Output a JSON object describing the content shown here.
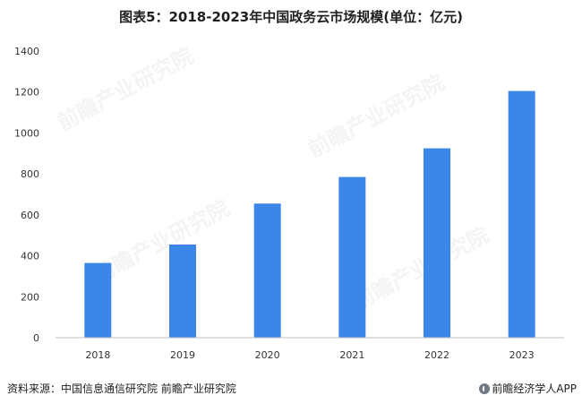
{
  "title": "图表5：2018-2023年中国政务云市场规模(单位：亿元)",
  "footer": {
    "source": "资料来源：中国信息通信研究院 前瞻产业研究院",
    "brand": "前瞻经济学人APP"
  },
  "watermark_text": "前瞻产业研究院",
  "colors": {
    "bar": "#3c86e8",
    "axis": "#bfbfbf"
  },
  "chart_data": {
    "type": "bar",
    "title": "图表5：2018-2023年中国政务云市场规模(单位：亿元)",
    "categories": [
      "2018",
      "2019",
      "2020",
      "2021",
      "2022",
      "2023"
    ],
    "values": [
      365,
      455,
      655,
      785,
      925,
      1205
    ],
    "ylim": [
      0,
      1400
    ],
    "yticks": [
      0,
      200,
      400,
      600,
      800,
      1000,
      1200,
      1400
    ],
    "grid": false
  }
}
